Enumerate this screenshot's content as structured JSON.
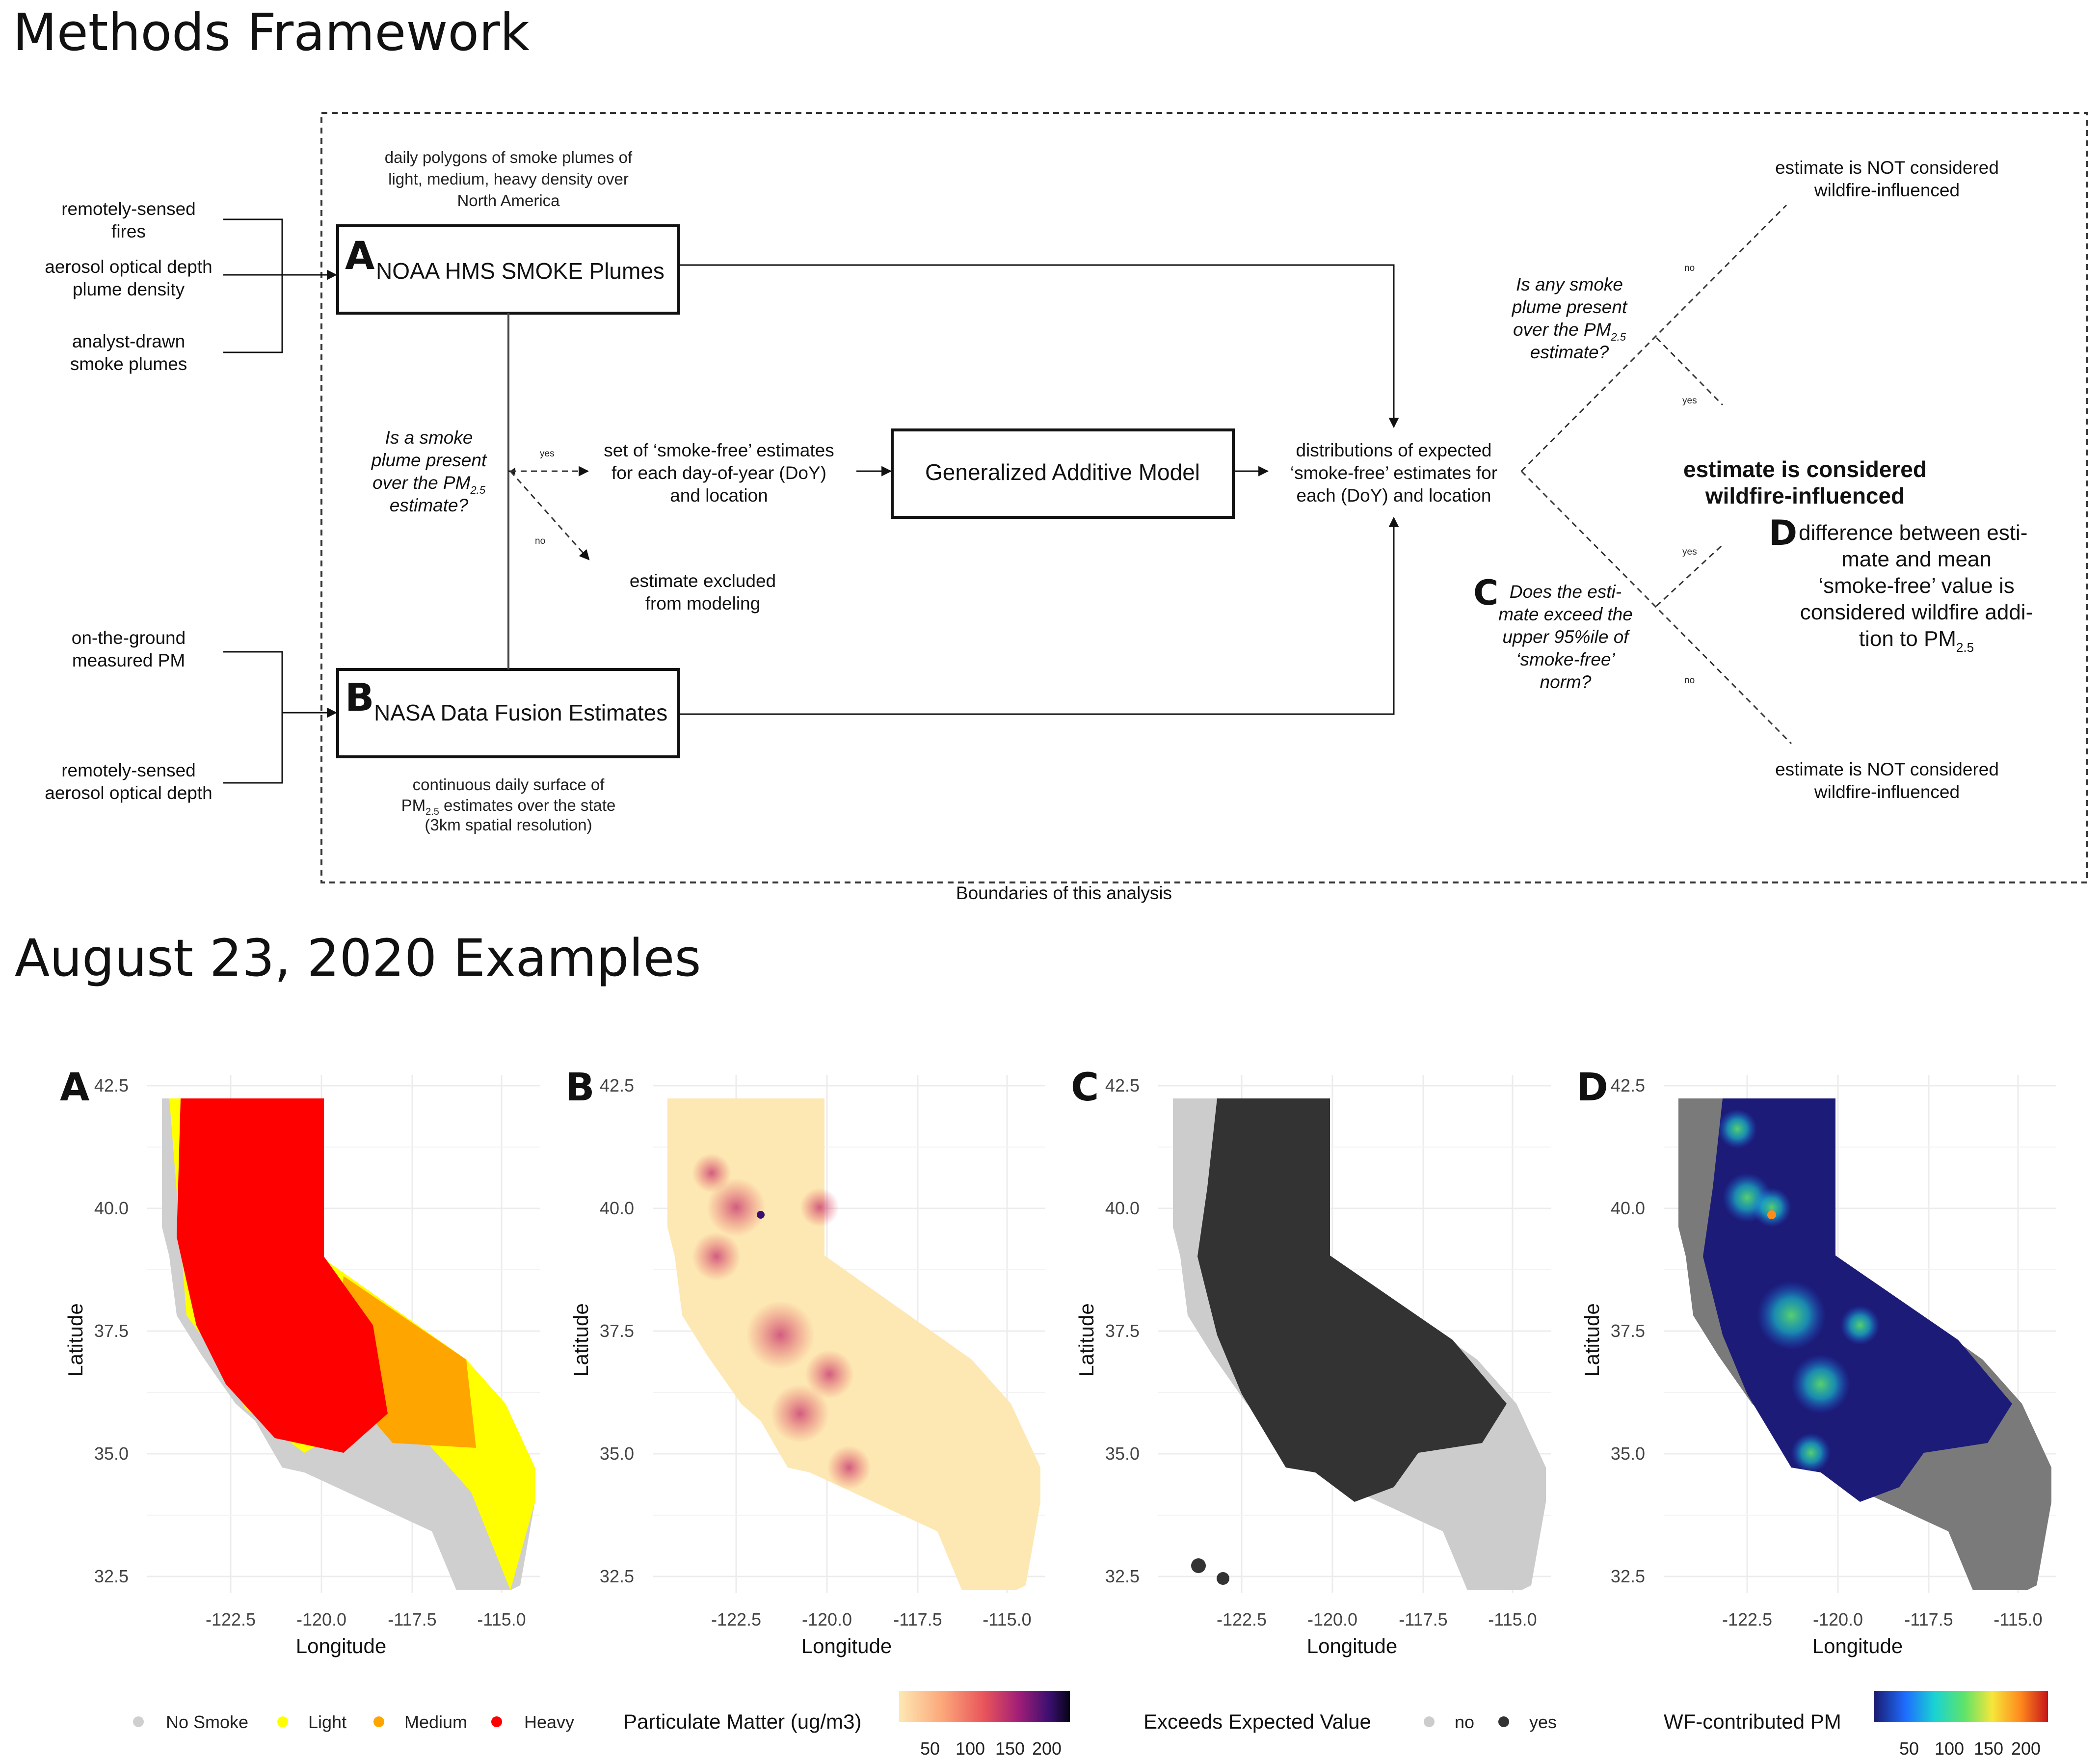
{
  "framework": {
    "title": "Methods Framework",
    "boundary_label": "Boundaries of this analysis",
    "inputs_top": [
      "remotely-sensed",
      "fires",
      "aerosol optical depth",
      "plume density",
      "analyst-drawn",
      "smoke plumes"
    ],
    "inputs_bottom": [
      "on-the-ground",
      "measured PM",
      "remotely-sensed",
      "aerosol optical depth"
    ],
    "box_a": {
      "letter": "A",
      "label": "NOAA HMS SMOKE Plumes",
      "desc": [
        "daily polygons of smoke plumes of",
        "light, medium, heavy density over",
        "North America"
      ]
    },
    "box_b": {
      "letter": "B",
      "label": "NASA Data Fusion Estimates",
      "desc_1": "continuous daily surface of",
      "desc_2_pre": "PM",
      "desc_2_sub": "2.5",
      "desc_2_post": " estimates over the state",
      "desc_3": "(3km spatial resolution)"
    },
    "question_left": {
      "l1": "Is a smoke",
      "l2": "plume present",
      "l3_pre": "over the PM",
      "l3_sub": "2.5",
      "l4": "estimate?"
    },
    "yes": "yes",
    "no": "no",
    "smoke_free_set": [
      "set of ‘smoke-free’ estimates",
      "for each day-of-year (DoY)",
      "and location"
    ],
    "excluded": [
      "estimate excluded",
      "from modeling"
    ],
    "gam": "Generalized Additive Model",
    "distributions": [
      "distributions of expected",
      "‘smoke-free’ estimates for",
      "each (DoY) and location"
    ],
    "question_right": {
      "l1": "Is any smoke",
      "l2": "plume present",
      "l3_pre": "over the PM",
      "l3_sub": "2.5",
      "l4": "estimate?"
    },
    "not_considered": [
      "estimate is NOT considered",
      "wildfire-influenced"
    ],
    "considered": [
      "estimate is considered",
      "wildfire-influenced"
    ],
    "c_letter": "C",
    "question_c": [
      "Does the esti-",
      "mate exceed the",
      "upper 95%ile of",
      "‘smoke-free’",
      "norm?"
    ],
    "d_letter": "D",
    "d_text": {
      "l1": "difference between esti-",
      "l2": "mate and mean",
      "l3": "‘smoke-free’ value is",
      "l4": "considered wildfire addi-",
      "l5_pre": "tion to PM",
      "l5_sub": "2.5"
    }
  },
  "examples": {
    "title": "August 23, 2020 Examples",
    "x_label": "Longitude",
    "y_label": "Latitude",
    "x_ticks": [
      "-122.5",
      "-120.0",
      "-117.5",
      "-115.0"
    ],
    "y_ticks": [
      "42.5",
      "40.0",
      "37.5",
      "35.0",
      "32.5"
    ],
    "panels": [
      {
        "letter": "A",
        "legend_title": "",
        "legend_items": [
          {
            "label": "No Smoke",
            "color": "#cfcfcf"
          },
          {
            "label": "Light",
            "color": "#ffff00"
          },
          {
            "label": "Medium",
            "color": "#ffa500"
          },
          {
            "label": "Heavy",
            "color": "#ff0000"
          }
        ]
      },
      {
        "letter": "B",
        "legend_title": "Particulate Matter (ug/m3)",
        "colorbar_ticks": [
          "50",
          "100",
          "150",
          "200"
        ],
        "colors": [
          "#fde8b3",
          "#fca87b",
          "#e8545a",
          "#a11e77",
          "#3b0f70",
          "#050416"
        ]
      },
      {
        "letter": "C",
        "legend_title": "Exceeds Expected Value",
        "legend_items": [
          {
            "label": "no",
            "color": "#cccccc"
          },
          {
            "label": "yes",
            "color": "#333333"
          }
        ]
      },
      {
        "letter": "D",
        "legend_title": "WF-contributed PM",
        "colorbar_ticks": [
          "50",
          "100",
          "150",
          "200"
        ],
        "colors": [
          "#1a1a6e",
          "#1e6cff",
          "#19d3d3",
          "#5fe36a",
          "#f6e63a",
          "#ff8b1d",
          "#c6141a"
        ]
      }
    ]
  }
}
